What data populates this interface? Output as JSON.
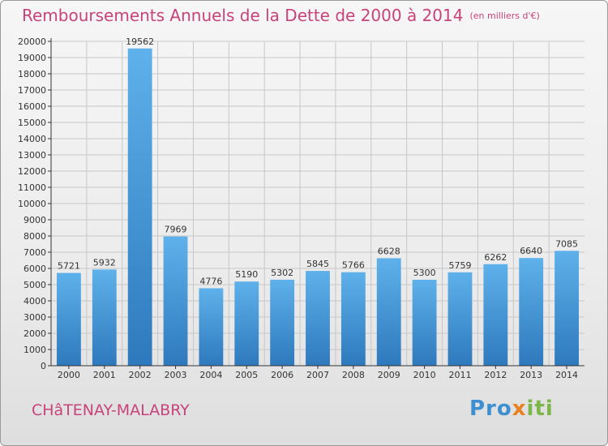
{
  "header": {
    "title": "Remboursements Annuels de la Dette de 2000 à 2014",
    "unit": "(en milliers d'€)"
  },
  "footer": {
    "city": "CHâTENAY-MALABRY",
    "logo_parts": [
      "Pro",
      "x",
      "iti"
    ]
  },
  "chart_data": {
    "type": "bar",
    "title": "Remboursements Annuels de la Dette de 2000 à 2014",
    "subtitle": "(en milliers d'€)",
    "xlabel": "",
    "ylabel": "",
    "categories": [
      "2000",
      "2001",
      "2002",
      "2003",
      "2004",
      "2005",
      "2006",
      "2007",
      "2008",
      "2009",
      "2010",
      "2011",
      "2012",
      "2013",
      "2014"
    ],
    "values": [
      5721,
      5932,
      19562,
      7969,
      4776,
      5190,
      5302,
      5845,
      5766,
      6628,
      5300,
      5759,
      6262,
      6640,
      7085
    ],
    "ylim": [
      0,
      20000
    ],
    "yticks": [
      0,
      1000,
      2000,
      3000,
      4000,
      5000,
      6000,
      7000,
      8000,
      9000,
      10000,
      11000,
      12000,
      13000,
      14000,
      15000,
      16000,
      17000,
      18000,
      19000,
      20000
    ],
    "grid": true,
    "legend": "none",
    "colors": {
      "bar_top": "#5eb1ea",
      "bar_bottom": "#2e79bd",
      "grid": "#c7c7c7",
      "axis": "#333333"
    }
  }
}
